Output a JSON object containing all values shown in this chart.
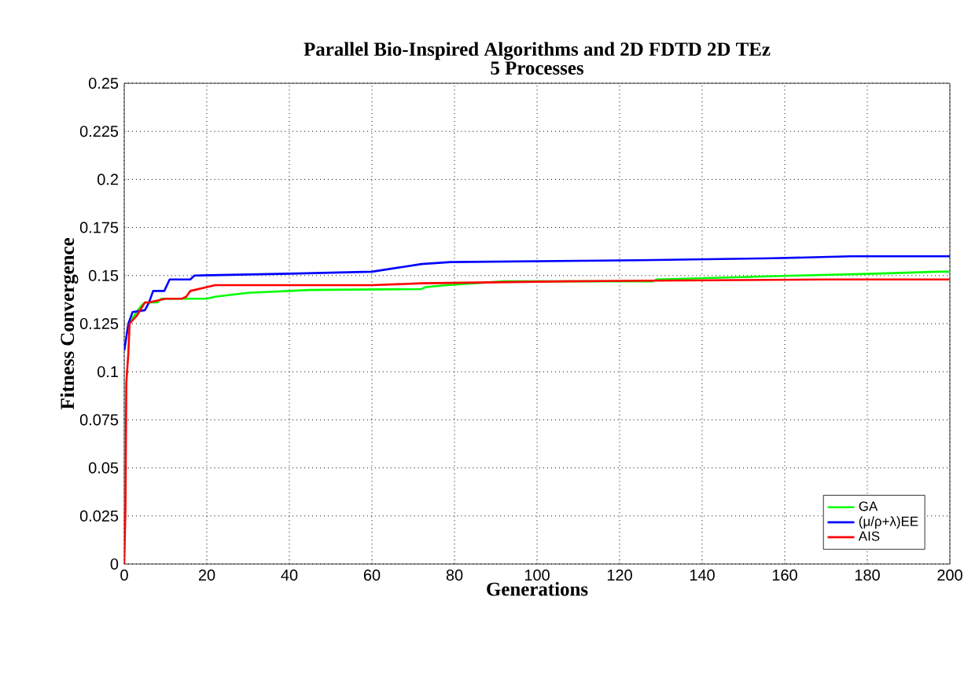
{
  "chart_data": {
    "type": "line",
    "title": "Parallel Bio-Inspired Algorithms and 2D FDTD 2D TEz\n5 Processes",
    "xlabel": "Generations",
    "ylabel": "Fitness Convergence",
    "xlim": [
      0,
      200
    ],
    "ylim": [
      0,
      0.25
    ],
    "xticks": [
      0,
      20,
      40,
      60,
      80,
      100,
      120,
      140,
      160,
      180,
      200
    ],
    "yticks": [
      0,
      0.025,
      0.05,
      0.075,
      0.1,
      0.125,
      0.15,
      0.175,
      0.2,
      0.225,
      0.25
    ],
    "grid": true,
    "legend": "bottom right",
    "line_style": "solid",
    "series": [
      {
        "name": "GA",
        "color": "#00ff00",
        "x": [
          1,
          2,
          4,
          5,
          8,
          9,
          20,
          22,
          30,
          45,
          72,
          73,
          78,
          92,
          128,
          129,
          163,
          182,
          197,
          200
        ],
        "values": [
          0.125,
          0.128,
          0.134,
          0.136,
          0.136,
          0.138,
          0.138,
          0.139,
          0.141,
          0.1425,
          0.143,
          0.144,
          0.145,
          0.147,
          0.147,
          0.148,
          0.15,
          0.151,
          0.152,
          0.152
        ]
      },
      {
        "name": "(μ/ρ+λ)EE",
        "color": "#0000ff",
        "x": [
          0,
          1,
          2,
          5,
          6,
          7,
          9.7,
          11,
          16,
          17,
          40,
          60,
          72,
          79,
          125,
          157,
          176,
          200
        ],
        "values": [
          0.111,
          0.125,
          0.131,
          0.132,
          0.136,
          0.142,
          0.142,
          0.148,
          0.148,
          0.15,
          0.151,
          0.152,
          0.156,
          0.157,
          0.158,
          0.159,
          0.16,
          0.16
        ]
      },
      {
        "name": "AIS",
        "color": "#ff0000",
        "x": [
          0,
          0.3,
          0.5,
          1,
          1.3,
          3,
          5,
          6,
          10,
          14,
          15,
          16,
          20,
          22,
          60,
          72,
          107,
          170,
          200
        ],
        "values": [
          0,
          0.03,
          0.094,
          0.11,
          0.125,
          0.129,
          0.136,
          0.136,
          0.138,
          0.138,
          0.139,
          0.142,
          0.144,
          0.145,
          0.145,
          0.146,
          0.147,
          0.148,
          0.148
        ]
      }
    ]
  }
}
